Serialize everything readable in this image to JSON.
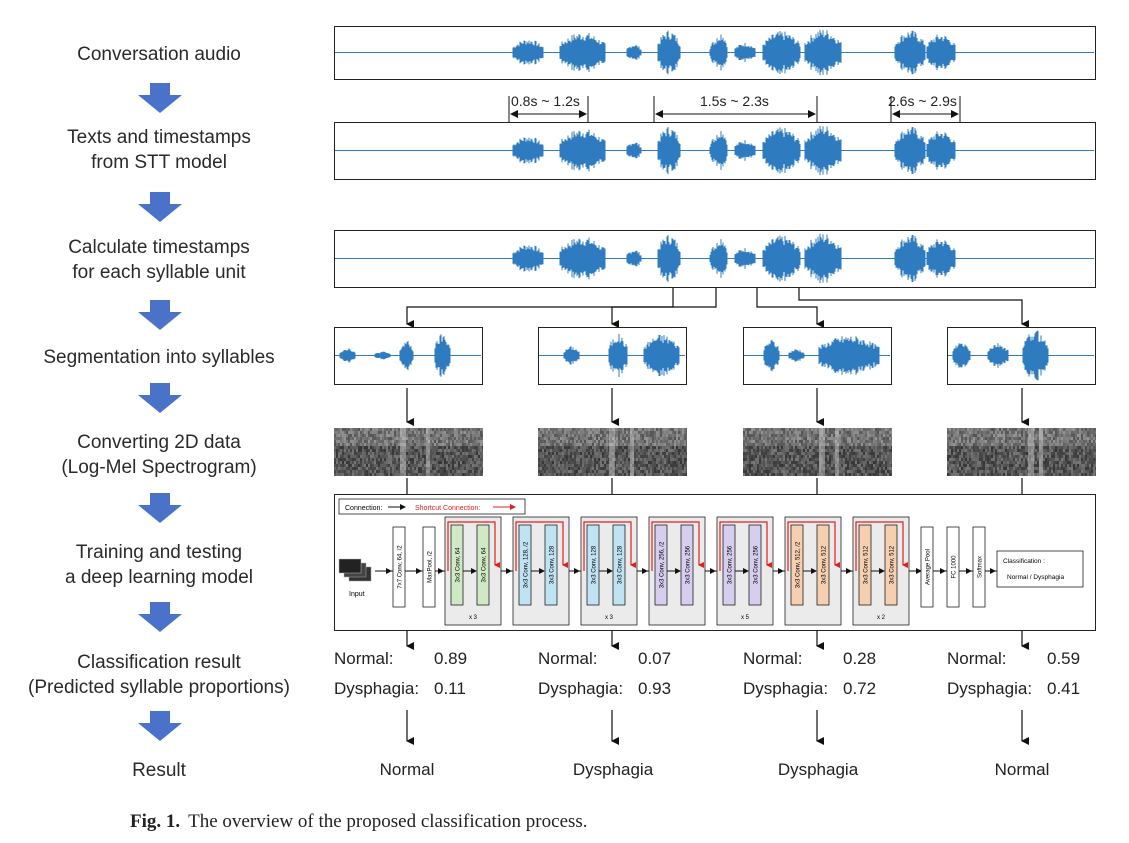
{
  "steps": [
    {
      "lines": [
        "Conversation audio"
      ]
    },
    {
      "lines": [
        "Texts and timestamps",
        "from STT model"
      ]
    },
    {
      "lines": [
        "Calculate timestamps",
        "for each syllable unit"
      ]
    },
    {
      "lines": [
        "Segmentation into syllables"
      ]
    },
    {
      "lines": [
        "Converting 2D data",
        "(Log-Mel Spectrogram)"
      ]
    },
    {
      "lines": [
        "Training and testing",
        "a deep learning model"
      ]
    },
    {
      "lines": [
        "Classification result",
        "(Predicted syllable proportions)"
      ]
    },
    {
      "lines": [
        "Result"
      ]
    }
  ],
  "time_ranges": [
    "0.8s ~ 1.2s",
    "1.5s ~ 2.3s",
    "2.6s ~ 2.9s"
  ],
  "model": {
    "legend_connection": "Connection:",
    "legend_shortcut": "Shortcut Connection:",
    "input_label": "Input",
    "conv1": "7x7 Conv, 64, /2",
    "maxpool": "MaxPool, /2",
    "blocks": [
      {
        "a": "3x3 Conv, 64",
        "b": "3x3 Conv, 64",
        "mult": "x 3"
      },
      {
        "a": "3x3 Conv, 128, /2",
        "b": "3x3 Conv, 128",
        "mult": ""
      },
      {
        "a": "3x3 Conv, 128",
        "b": "3x3 Conv, 128",
        "mult": "x 3"
      },
      {
        "a": "3x3 Conv, 256, /2",
        "b": "3x3 Conv, 256",
        "mult": ""
      },
      {
        "a": "3x3 Conv, 256",
        "b": "3x3 Conv, 256",
        "mult": "x 5"
      },
      {
        "a": "3x3 Conv, 512, /2",
        "b": "3x3 Conv, 512",
        "mult": ""
      },
      {
        "a": "3x3 Conv, 512",
        "b": "3x3 Conv, 512",
        "mult": "x 2"
      }
    ],
    "avgpool": "Average Pool",
    "fc": "FC 1000",
    "softmax": "Softmax",
    "classification_title": "Classification :",
    "classification_value": "Normal / Dysphagia"
  },
  "prob_labels": {
    "normal": "Normal:",
    "dysphagia": "Dysphagia:"
  },
  "results": [
    {
      "normal": "0.89",
      "dysphagia": "0.11",
      "result": "Normal"
    },
    {
      "normal": "0.07",
      "dysphagia": "0.93",
      "result": "Dysphagia"
    },
    {
      "normal": "0.28",
      "dysphagia": "0.72",
      "result": "Dysphagia"
    },
    {
      "normal": "0.59",
      "dysphagia": "0.41",
      "result": "Normal"
    }
  ],
  "caption": {
    "label": "Fig. 1.",
    "text": "The overview of the proposed classification process."
  },
  "colors": {
    "wave": "#2f7bbf",
    "step_arrow": "#4a72c9",
    "marker": "#e02020",
    "shortcut": "#e02020",
    "block_bg": "#ebebeb",
    "green": "#cfe9c4",
    "blue": "#bfe3f3",
    "purple": "#d7cdee",
    "orange": "#f5cfb0"
  }
}
